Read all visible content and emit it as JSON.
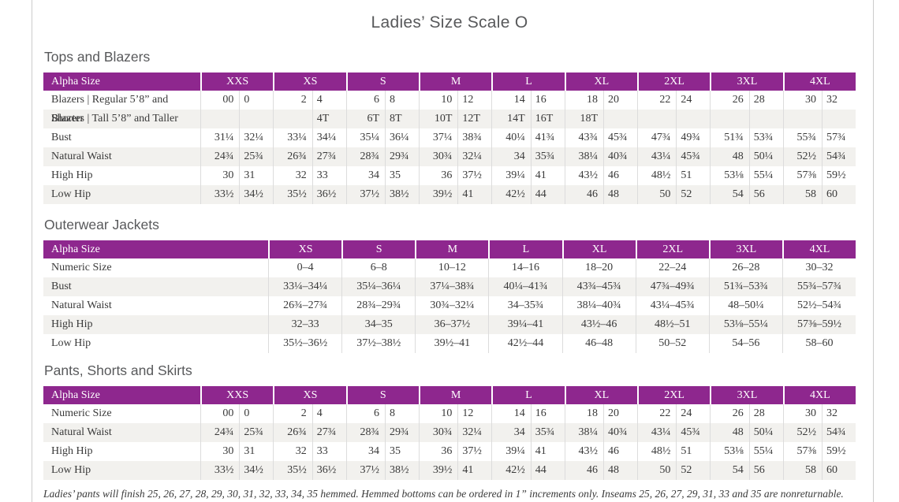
{
  "page": {
    "title": "Ladies’ Size Scale O",
    "footnote": "Ladies’ pants will finish 25, 26, 27, 28, 29, 30, 31, 32, 33, 34, 35 hemmed. Hemmed bottoms can be ordered in 1” increments only. Inseams 25, 26, 27, 29, 31, 33 and 35 are nonreturnable."
  },
  "colors": {
    "accent": "#8e278e",
    "stripe": "#f2f1ee",
    "border": "#dcdcdc",
    "heading": "#58595b",
    "text": "#3a3a3a",
    "page_edge": "#cccccc"
  },
  "tables": [
    {
      "section": "Tops and Blazers",
      "type": "paired",
      "header_label": "Alpha Size",
      "alpha_sizes": [
        "XXS",
        "XS",
        "S",
        "M",
        "L",
        "XL",
        "2XL",
        "3XL",
        "4XL"
      ],
      "rows": [
        {
          "label": "Blazers  |  Regular 5’8” and Shorter",
          "values": [
            "00",
            "0",
            "2",
            "4",
            "6",
            "8",
            "10",
            "12",
            "14",
            "16",
            "18",
            "20",
            "22",
            "24",
            "26",
            "28",
            "30",
            "32"
          ]
        },
        {
          "label": "Blazers  |  Tall 5’8” and Taller",
          "values": [
            "",
            "",
            "",
            "4T",
            "6T",
            "8T",
            "10T",
            "12T",
            "14T",
            "16T",
            "18T",
            "",
            "",
            "",
            "",
            "",
            "",
            ""
          ]
        },
        {
          "label": "Bust",
          "values": [
            "31¼",
            "32¼",
            "33¼",
            "34¼",
            "35¼",
            "36¼",
            "37¼",
            "38¾",
            "40¼",
            "41¾",
            "43¾",
            "45¾",
            "47¾",
            "49¾",
            "51¾",
            "53¾",
            "55¾",
            "57¾"
          ]
        },
        {
          "label": "Natural Waist",
          "values": [
            "24¾",
            "25¾",
            "26¾",
            "27¾",
            "28¾",
            "29¾",
            "30¾",
            "32¼",
            "34",
            "35¾",
            "38¼",
            "40¾",
            "43¼",
            "45¾",
            "48",
            "50¼",
            "52½",
            "54¾"
          ]
        },
        {
          "label": "High Hip",
          "values": [
            "30",
            "31",
            "32",
            "33",
            "34",
            "35",
            "36",
            "37½",
            "39¼",
            "41",
            "43½",
            "46",
            "48½",
            "51",
            "53⅛",
            "55¼",
            "57⅜",
            "59½"
          ]
        },
        {
          "label": "Low Hip",
          "values": [
            "33½",
            "34½",
            "35½",
            "36½",
            "37½",
            "38½",
            "39½",
            "41",
            "42½",
            "44",
            "46",
            "48",
            "50",
            "52",
            "54",
            "56",
            "58",
            "60"
          ]
        }
      ]
    },
    {
      "section": "Outerwear Jackets",
      "type": "single",
      "header_label": "Alpha Size",
      "alpha_sizes": [
        "XS",
        "S",
        "M",
        "L",
        "XL",
        "2XL",
        "3XL",
        "4XL"
      ],
      "rows": [
        {
          "label": "Numeric Size",
          "values": [
            "0–4",
            "6–8",
            "10–12",
            "14–16",
            "18–20",
            "22–24",
            "26–28",
            "30–32"
          ]
        },
        {
          "label": "Bust",
          "values": [
            "33¼–34¼",
            "35¼–36¼",
            "37¼–38¾",
            "40¼–41¾",
            "43¾–45¾",
            "47¾–49¾",
            "51¾–53¾",
            "55¾–57¾"
          ]
        },
        {
          "label": "Natural Waist",
          "values": [
            "26¾–27¾",
            "28¾–29¾",
            "30¾–32¼",
            "34–35¾",
            "38¼–40¾",
            "43¼–45¾",
            "48–50¼",
            "52½–54¾"
          ]
        },
        {
          "label": "High Hip",
          "values": [
            "32–33",
            "34–35",
            "36–37½",
            "39¼–41",
            "43½–46",
            "48½–51",
            "53⅛–55¼",
            "57⅜–59½"
          ]
        },
        {
          "label": "Low Hip",
          "values": [
            "35½–36½",
            "37½–38½",
            "39½–41",
            "42½–44",
            "46–48",
            "50–52",
            "54–56",
            "58–60"
          ]
        }
      ]
    },
    {
      "section": "Pants, Shorts and Skirts",
      "type": "paired",
      "header_label": "Alpha Size",
      "alpha_sizes": [
        "XXS",
        "XS",
        "S",
        "M",
        "L",
        "XL",
        "2XL",
        "3XL",
        "4XL"
      ],
      "rows": [
        {
          "label": "Numeric Size",
          "values": [
            "00",
            "0",
            "2",
            "4",
            "6",
            "8",
            "10",
            "12",
            "14",
            "16",
            "18",
            "20",
            "22",
            "24",
            "26",
            "28",
            "30",
            "32"
          ]
        },
        {
          "label": "Natural Waist",
          "values": [
            "24¾",
            "25¾",
            "26¾",
            "27¾",
            "28¾",
            "29¾",
            "30¾",
            "32¼",
            "34",
            "35¾",
            "38¼",
            "40¾",
            "43¼",
            "45¾",
            "48",
            "50¼",
            "52½",
            "54¾"
          ]
        },
        {
          "label": "High Hip",
          "values": [
            "30",
            "31",
            "32",
            "33",
            "34",
            "35",
            "36",
            "37½",
            "39¼",
            "41",
            "43½",
            "46",
            "48½",
            "51",
            "53⅛",
            "55¼",
            "57⅜",
            "59½"
          ]
        },
        {
          "label": "Low Hip",
          "values": [
            "33½",
            "34½",
            "35½",
            "36½",
            "37½",
            "38½",
            "39½",
            "41",
            "42½",
            "44",
            "46",
            "48",
            "50",
            "52",
            "54",
            "56",
            "58",
            "60"
          ]
        }
      ]
    }
  ]
}
